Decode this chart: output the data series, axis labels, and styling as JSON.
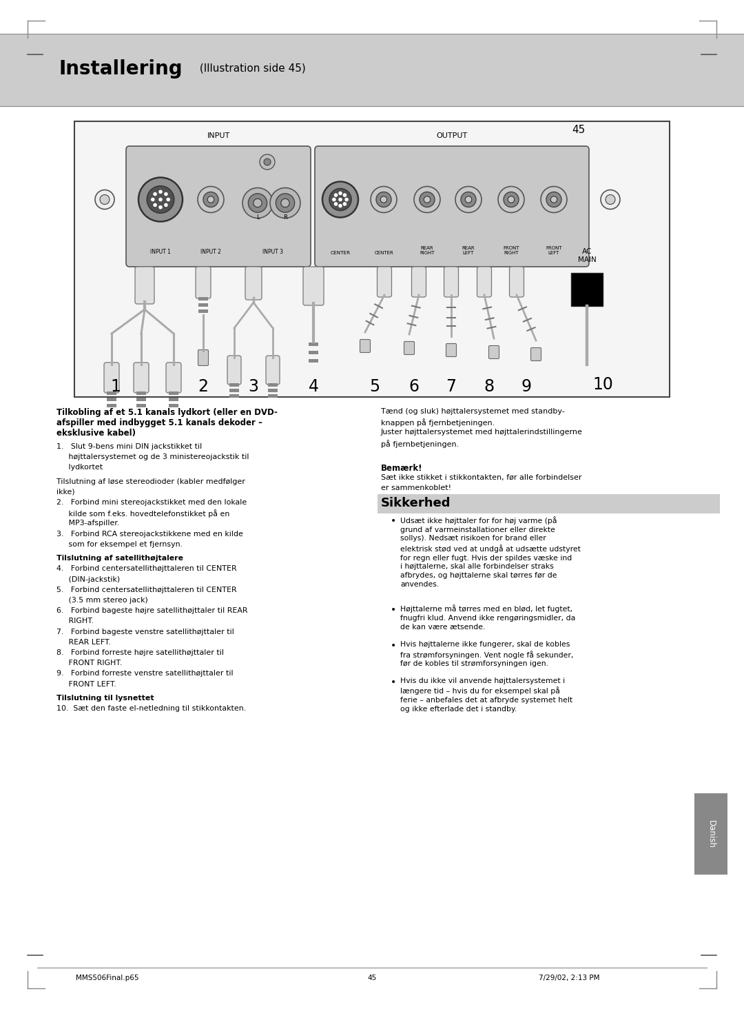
{
  "page_bg": "#ffffff",
  "header_bg": "#cccccc",
  "header_title_bold": "Installering",
  "header_title_normal": " (Illustration side 45)",
  "page_number": "45",
  "footer_left": "MMS506Final.p65",
  "footer_center": "45",
  "footer_right": "7/29/02, 2:13 PM",
  "section2_title": "Sikkerhed",
  "danish_tab": "Danish",
  "left_title_line1": "Tilkobling af et 5.1 kanals lydkort (eller en DVD-",
  "left_title_line2": "afspiller med indbygget 5.1 kanals dekoder –",
  "left_title_line3": "eksklusive kabel)",
  "left_body": [
    [
      false,
      "1.   Slut 9-bens mini DIN jackstikket til"
    ],
    [
      false,
      "     højttalersystemet og de 3 ministereojackstik til"
    ],
    [
      false,
      "     lydkortet"
    ],
    [
      false,
      ""
    ],
    [
      false,
      "Tilslutning af løse stereodioder (kabler medfølger"
    ],
    [
      false,
      "ikke)"
    ],
    [
      false,
      "2.   Forbind mini stereojackstikket med den lokale"
    ],
    [
      false,
      "     kilde som f.eks. hovedtelefonstikket på en"
    ],
    [
      false,
      "     MP3-afspiller."
    ],
    [
      false,
      "3.   Forbind RCA stereojackstikkene med en kilde"
    ],
    [
      false,
      "     som for eksempel et fjernsyn."
    ],
    [
      false,
      ""
    ],
    [
      true,
      "Tilslutning af satellithøjtalere"
    ],
    [
      false,
      "4.   Forbind centersatellithøjttaleren til CENTER"
    ],
    [
      false,
      "     (DIN-jackstik)"
    ],
    [
      false,
      "5.   Forbind centersatellithøjttaleren til CENTER"
    ],
    [
      false,
      "     (3.5 mm stereo jack)"
    ],
    [
      false,
      "6.   Forbind bageste højre satellithøjttaler til REAR"
    ],
    [
      false,
      "     RIGHT."
    ],
    [
      false,
      "7.   Forbind bageste venstre satellithøjttaler til"
    ],
    [
      false,
      "     REAR LEFT."
    ],
    [
      false,
      "8.   Forbind forreste højre satellithøjttaler til"
    ],
    [
      false,
      "     FRONT RIGHT."
    ],
    [
      false,
      "9.   Forbind forreste venstre satellithøjttaler til"
    ],
    [
      false,
      "     FRONT LEFT."
    ],
    [
      false,
      ""
    ],
    [
      true,
      "Tilslutning til lysnettet"
    ],
    [
      false,
      "10.  Sæt den faste el-netledning til stikkontakten."
    ]
  ],
  "right_top": [
    "Tænd (og sluk) højttalersystemet med standby-",
    "knappen på fjernbetjeningen.",
    "Juster højttalersystemet med højttalerindstillingerne",
    "på fjernbetjeningen."
  ],
  "remark_title": "Bemærk!",
  "remark_body": [
    "Sæt ikke stikket i stikkontakten, før alle forbindelser",
    "er sammenkoblet!"
  ],
  "bullets": [
    "Udsæt ikke højttaler for for høj varme (på\ngrund af varmeinstallationer eller direkte\nsollys). Nedsæt risikoen for brand eller\nelektrisk stød ved at undgå at udsætte udstyret\nfor regn eller fugt. Hvis der spildes væske ind\ni højttalerne, skal alle forbindelser straks\nafbrydes, og højttalerne skal tørres før de\nanvendes.",
    "Højttalerne må tørres med en blød, let fugtet,\nfnugfri klud. Anvend ikke rengøringsmidler, da\nde kan være ætsende.",
    "Hvis højttalerne ikke fungerer, skal de kobles\nfra strømforsyningen. Vent nogle få sekunder,\nfør de kobles til strømforsyningen igen.",
    "Hvis du ikke vil anvende højttalersystemet i\nlængere tid – hvis du for eksempel skal på\nferie – anbefales det at afbryde systemet helt\nog ikke efterlade det i standby."
  ]
}
